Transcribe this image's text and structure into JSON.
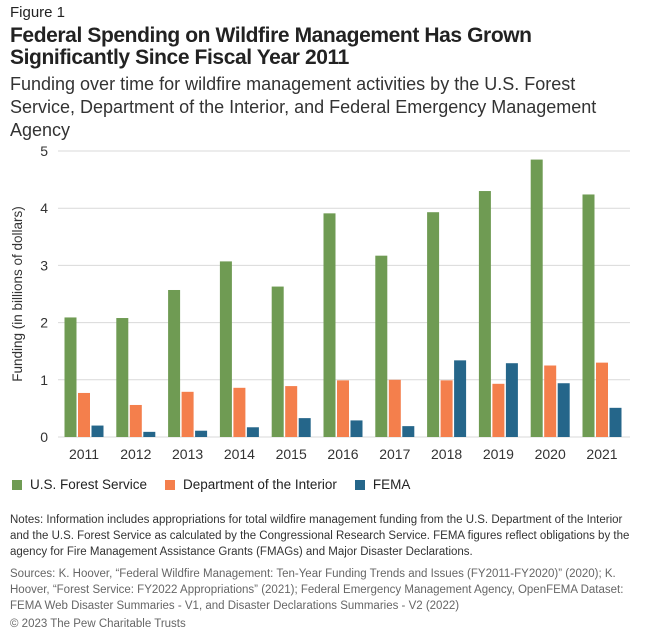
{
  "figure_label": "Figure 1",
  "title": "Federal Spending on Wildfire Management Has Grown Significantly Since Fiscal Year 2011",
  "subtitle": "Funding over time for wildfire management activities by the U.S. Forest Service, Department of the Interior, and Federal Emergency Management Agency",
  "chart_data": {
    "type": "bar",
    "categories": [
      "2011",
      "2012",
      "2013",
      "2014",
      "2015",
      "2016",
      "2017",
      "2018",
      "2019",
      "2020",
      "2021"
    ],
    "ylabel": "Funding (in billions of dollars)",
    "xlabel": "",
    "ylim": [
      0,
      5
    ],
    "yticks": [
      "0",
      "1",
      "2",
      "3",
      "4",
      "5"
    ],
    "grid": true,
    "legend": "bottom-left",
    "series": [
      {
        "name": "U.S. Forest Service",
        "color": "#6f9b53",
        "values": [
          2.09,
          2.08,
          2.57,
          3.07,
          2.63,
          3.91,
          3.17,
          3.93,
          4.3,
          4.85,
          4.24
        ]
      },
      {
        "name": "Department of the Interior",
        "color": "#f47f4c",
        "values": [
          0.77,
          0.56,
          0.79,
          0.86,
          0.89,
          0.99,
          1.0,
          0.99,
          0.93,
          1.25,
          1.3
        ]
      },
      {
        "name": "FEMA",
        "color": "#25668a",
        "values": [
          0.2,
          0.09,
          0.11,
          0.17,
          0.33,
          0.29,
          0.19,
          1.34,
          1.29,
          0.94,
          0.51
        ]
      }
    ]
  },
  "notes": "Notes: Information includes appropriations for total wildfire management funding from the U.S. Department of the Interior and the U.S. Forest Service as calculated by the Congressional Research Service. FEMA figures reflect obligations by the agency for Fire Management Assistance Grants (FMAGs) and Major Disaster Declarations.",
  "sources": "Sources: K. Hoover, “Federal Wildfire Management: Ten-Year Funding Trends and Issues (FY2011-FY2020)” (2020); K. Hoover, “Forest Service: FY2022 Appropriations” (2021); Federal Emergency Management Agency, OpenFEMA Dataset: FEMA Web Disaster Summaries - V1, and Disaster Declarations Summaries - V2 (2022)",
  "copyright": "© 2023 The Pew Charitable Trusts"
}
